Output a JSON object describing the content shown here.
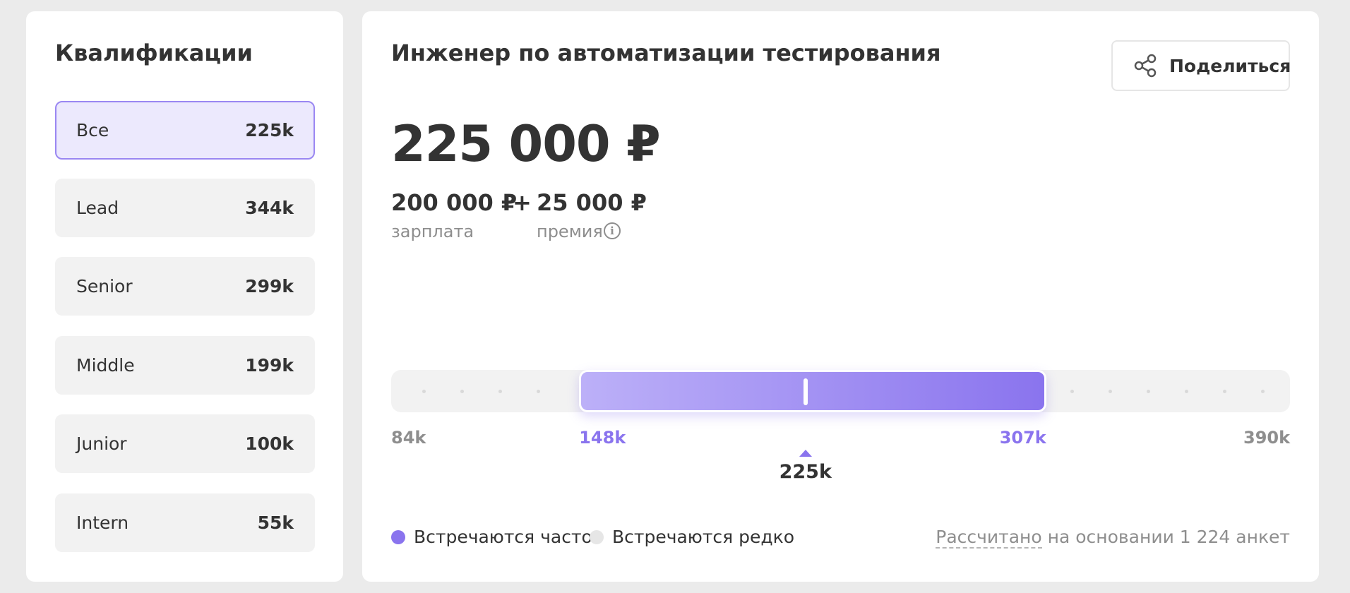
{
  "sidebar": {
    "title": "Квалификации",
    "items": [
      {
        "name": "Все",
        "value": "225k",
        "active": true
      },
      {
        "name": "Lead",
        "value": "344k"
      },
      {
        "name": "Senior",
        "value": "299k"
      },
      {
        "name": "Middle",
        "value": "199k"
      },
      {
        "name": "Junior",
        "value": "100k"
      },
      {
        "name": "Intern",
        "value": "55k"
      }
    ]
  },
  "main": {
    "title": "Инженер по автоматизации тестирования",
    "share_label": "Поделиться",
    "total": "225 000 ₽",
    "salary": {
      "value": "200 000 ₽",
      "label": "зарплата"
    },
    "plus": "+",
    "bonus": {
      "value": "25 000 ₽",
      "label": "премия",
      "info_icon": "info-icon"
    },
    "range": {
      "min": 84,
      "max": 390,
      "low": 148,
      "high": 307,
      "median": 225,
      "min_label": "84k",
      "max_label": "390k",
      "low_label": "148k",
      "high_label": "307k",
      "median_label": "225k"
    },
    "legend": [
      {
        "label": "Встречаются часто",
        "color": "#8a74ee"
      },
      {
        "label": "Встречаются редко",
        "color": "#e6e6e6"
      }
    ],
    "footnote": {
      "link": "Рассчитано",
      "rest": " на основании 1 224 анкет"
    }
  },
  "colors": {
    "accent": "#8a74ee",
    "active_bg": "#ece9fd",
    "active_border": "#9a87f2"
  }
}
